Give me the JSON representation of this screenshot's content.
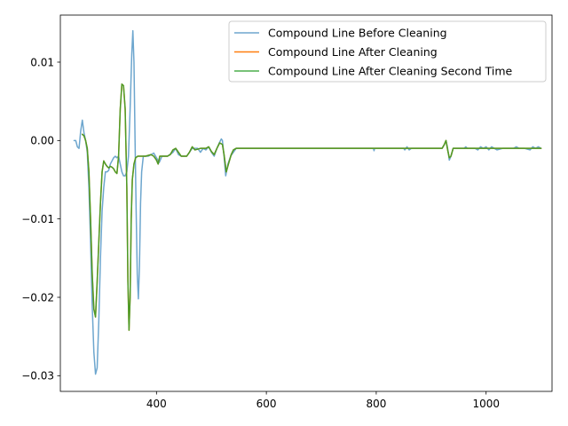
{
  "chart_data": {
    "type": "line",
    "title": "",
    "xlabel": "",
    "ylabel": "",
    "xlim": [
      225,
      1120
    ],
    "ylim": [
      -0.032,
      0.016
    ],
    "xticks": [
      400,
      600,
      800,
      1000
    ],
    "yticks": [
      0.01,
      0.0,
      -0.01,
      -0.02,
      -0.03
    ],
    "ytick_labels": [
      "0.01",
      "0.00",
      "−0.01",
      "−0.02",
      "−0.03"
    ],
    "xtick_labels": [
      "400",
      "600",
      "800",
      "1000"
    ],
    "grid": false,
    "legend_position": "top-right",
    "series": [
      {
        "name": "Compound Line Before Cleaning",
        "color": "#1f77b4",
        "opacity": 0.65,
        "points": [
          [
            250,
            0.0
          ],
          [
            253,
            0.0
          ],
          [
            256,
            -0.0008
          ],
          [
            259,
            -0.001
          ],
          [
            262,
            0.0012
          ],
          [
            265,
            0.0026
          ],
          [
            268,
            0.001
          ],
          [
            271,
            0.0
          ],
          [
            274,
            -0.0015
          ],
          [
            277,
            -0.006
          ],
          [
            280,
            -0.013
          ],
          [
            283,
            -0.021
          ],
          [
            286,
            -0.027
          ],
          [
            289,
            -0.0298
          ],
          [
            292,
            -0.029
          ],
          [
            295,
            -0.023
          ],
          [
            298,
            -0.015
          ],
          [
            301,
            -0.009
          ],
          [
            304,
            -0.006
          ],
          [
            307,
            -0.004
          ],
          [
            310,
            -0.004
          ],
          [
            313,
            -0.0038
          ],
          [
            316,
            -0.003
          ],
          [
            319,
            -0.0026
          ],
          [
            322,
            -0.0022
          ],
          [
            325,
            -0.002
          ],
          [
            328,
            -0.0022
          ],
          [
            331,
            -0.002
          ],
          [
            334,
            -0.003
          ],
          [
            337,
            -0.004
          ],
          [
            340,
            -0.0045
          ],
          [
            343,
            -0.0045
          ],
          [
            346,
            -0.004
          ],
          [
            349,
            -0.002
          ],
          [
            352,
            0.004
          ],
          [
            355,
            0.011
          ],
          [
            357,
            0.014
          ],
          [
            359,
            0.01
          ],
          [
            361,
            0.0
          ],
          [
            363,
            -0.009
          ],
          [
            365,
            -0.017
          ],
          [
            367,
            -0.0202
          ],
          [
            369,
            -0.016
          ],
          [
            371,
            -0.008
          ],
          [
            373,
            -0.004
          ],
          [
            376,
            -0.002
          ],
          [
            380,
            -0.002
          ],
          [
            385,
            -0.002
          ],
          [
            390,
            -0.0018
          ],
          [
            395,
            -0.0016
          ],
          [
            400,
            -0.0022
          ],
          [
            405,
            -0.0028
          ],
          [
            410,
            -0.002
          ],
          [
            420,
            -0.002
          ],
          [
            430,
            -0.0015
          ],
          [
            435,
            -0.001
          ],
          [
            440,
            -0.0018
          ],
          [
            445,
            -0.002
          ],
          [
            455,
            -0.002
          ],
          [
            460,
            -0.0015
          ],
          [
            465,
            -0.001
          ],
          [
            470,
            -0.001
          ],
          [
            475,
            -0.001
          ],
          [
            480,
            -0.0015
          ],
          [
            485,
            -0.001
          ],
          [
            490,
            -0.0012
          ],
          [
            495,
            -0.0008
          ],
          [
            500,
            -0.0015
          ],
          [
            505,
            -0.002
          ],
          [
            510,
            -0.001
          ],
          [
            515,
            -0.0002
          ],
          [
            518,
            0.0002
          ],
          [
            520,
            0.0
          ],
          [
            523,
            -0.002
          ],
          [
            526,
            -0.0045
          ],
          [
            530,
            -0.003
          ],
          [
            535,
            -0.002
          ],
          [
            540,
            -0.0015
          ],
          [
            545,
            -0.001
          ],
          [
            600,
            -0.001
          ],
          [
            700,
            -0.001
          ],
          [
            795,
            -0.001
          ],
          [
            796,
            -0.0013
          ],
          [
            797,
            -0.001
          ],
          [
            850,
            -0.001
          ],
          [
            852,
            -0.0012
          ],
          [
            856,
            -0.0008
          ],
          [
            860,
            -0.0012
          ],
          [
            864,
            -0.001
          ],
          [
            920,
            -0.001
          ],
          [
            924,
            -0.0005
          ],
          [
            927,
            0.0
          ],
          [
            930,
            -0.001
          ],
          [
            933,
            -0.0025
          ],
          [
            936,
            -0.002
          ],
          [
            940,
            -0.001
          ],
          [
            960,
            -0.001
          ],
          [
            963,
            -0.0008
          ],
          [
            966,
            -0.001
          ],
          [
            980,
            -0.001
          ],
          [
            985,
            -0.0012
          ],
          [
            990,
            -0.0008
          ],
          [
            995,
            -0.001
          ],
          [
            1000,
            -0.0008
          ],
          [
            1005,
            -0.0012
          ],
          [
            1010,
            -0.0008
          ],
          [
            1015,
            -0.001
          ],
          [
            1020,
            -0.0012
          ],
          [
            1030,
            -0.001
          ],
          [
            1050,
            -0.001
          ],
          [
            1055,
            -0.0008
          ],
          [
            1060,
            -0.001
          ],
          [
            1070,
            -0.001
          ],
          [
            1080,
            -0.0012
          ],
          [
            1085,
            -0.0008
          ],
          [
            1090,
            -0.001
          ],
          [
            1095,
            -0.0008
          ],
          [
            1100,
            -0.001
          ]
        ]
      },
      {
        "name": "Compound Line After Cleaning",
        "color": "#ff7f0e",
        "opacity": 1,
        "points": [
          [
            265,
            0.0008
          ],
          [
            268,
            0.0006
          ],
          [
            271,
            0.0
          ],
          [
            274,
            -0.001
          ],
          [
            277,
            -0.004
          ],
          [
            280,
            -0.01
          ],
          [
            283,
            -0.017
          ],
          [
            286,
            -0.0215
          ],
          [
            289,
            -0.0225
          ],
          [
            292,
            -0.018
          ],
          [
            295,
            -0.013
          ],
          [
            298,
            -0.008
          ],
          [
            301,
            -0.004
          ],
          [
            304,
            -0.0026
          ],
          [
            307,
            -0.003
          ],
          [
            310,
            -0.0033
          ],
          [
            313,
            -0.0035
          ],
          [
            316,
            -0.0033
          ],
          [
            319,
            -0.0034
          ],
          [
            322,
            -0.0036
          ],
          [
            325,
            -0.004
          ],
          [
            328,
            -0.0042
          ],
          [
            331,
            -0.002
          ],
          [
            334,
            0.004
          ],
          [
            337,
            0.0072
          ],
          [
            340,
            0.007
          ],
          [
            343,
            0.004
          ],
          [
            346,
            -0.006
          ],
          [
            348,
            -0.018
          ],
          [
            350,
            -0.0242
          ],
          [
            352,
            -0.02
          ],
          [
            354,
            -0.01
          ],
          [
            356,
            -0.005
          ],
          [
            359,
            -0.003
          ],
          [
            362,
            -0.0022
          ],
          [
            366,
            -0.002
          ],
          [
            370,
            -0.002
          ],
          [
            380,
            -0.002
          ],
          [
            390,
            -0.0018
          ],
          [
            395,
            -0.002
          ],
          [
            400,
            -0.0025
          ],
          [
            403,
            -0.003
          ],
          [
            406,
            -0.002
          ],
          [
            420,
            -0.002
          ],
          [
            425,
            -0.0018
          ],
          [
            430,
            -0.0012
          ],
          [
            435,
            -0.001
          ],
          [
            440,
            -0.0015
          ],
          [
            445,
            -0.002
          ],
          [
            455,
            -0.002
          ],
          [
            460,
            -0.0015
          ],
          [
            465,
            -0.0008
          ],
          [
            470,
            -0.0012
          ],
          [
            480,
            -0.001
          ],
          [
            490,
            -0.001
          ],
          [
            495,
            -0.0008
          ],
          [
            500,
            -0.0014
          ],
          [
            505,
            -0.0018
          ],
          [
            510,
            -0.001
          ],
          [
            515,
            -0.0003
          ],
          [
            520,
            -0.0005
          ],
          [
            523,
            -0.0018
          ],
          [
            527,
            -0.004
          ],
          [
            531,
            -0.003
          ],
          [
            536,
            -0.0018
          ],
          [
            540,
            -0.0012
          ],
          [
            545,
            -0.001
          ],
          [
            600,
            -0.001
          ],
          [
            700,
            -0.001
          ],
          [
            800,
            -0.001
          ],
          [
            900,
            -0.001
          ],
          [
            920,
            -0.001
          ],
          [
            924,
            -0.0005
          ],
          [
            927,
            0.0
          ],
          [
            930,
            -0.0012
          ],
          [
            933,
            -0.0022
          ],
          [
            936,
            -0.002
          ],
          [
            940,
            -0.001
          ],
          [
            1000,
            -0.001
          ],
          [
            1100,
            -0.001
          ]
        ]
      },
      {
        "name": "Compound Line After Cleaning Second Time",
        "color": "#2ca02c",
        "opacity": 0.85,
        "points": [
          [
            265,
            0.0008
          ],
          [
            268,
            0.0006
          ],
          [
            271,
            0.0
          ],
          [
            274,
            -0.001
          ],
          [
            277,
            -0.004
          ],
          [
            280,
            -0.01
          ],
          [
            283,
            -0.017
          ],
          [
            286,
            -0.0215
          ],
          [
            289,
            -0.0225
          ],
          [
            292,
            -0.018
          ],
          [
            295,
            -0.013
          ],
          [
            298,
            -0.008
          ],
          [
            301,
            -0.004
          ],
          [
            304,
            -0.0026
          ],
          [
            307,
            -0.003
          ],
          [
            310,
            -0.0033
          ],
          [
            313,
            -0.0035
          ],
          [
            316,
            -0.0033
          ],
          [
            319,
            -0.0034
          ],
          [
            322,
            -0.0036
          ],
          [
            325,
            -0.004
          ],
          [
            328,
            -0.0042
          ],
          [
            331,
            -0.002
          ],
          [
            334,
            0.004
          ],
          [
            337,
            0.0072
          ],
          [
            340,
            0.007
          ],
          [
            343,
            0.004
          ],
          [
            346,
            -0.006
          ],
          [
            348,
            -0.018
          ],
          [
            350,
            -0.0242
          ],
          [
            352,
            -0.02
          ],
          [
            354,
            -0.01
          ],
          [
            356,
            -0.005
          ],
          [
            359,
            -0.003
          ],
          [
            362,
            -0.0022
          ],
          [
            366,
            -0.002
          ],
          [
            370,
            -0.002
          ],
          [
            380,
            -0.002
          ],
          [
            390,
            -0.0018
          ],
          [
            395,
            -0.002
          ],
          [
            400,
            -0.0025
          ],
          [
            403,
            -0.003
          ],
          [
            406,
            -0.002
          ],
          [
            420,
            -0.002
          ],
          [
            425,
            -0.0018
          ],
          [
            430,
            -0.0012
          ],
          [
            435,
            -0.001
          ],
          [
            440,
            -0.0015
          ],
          [
            445,
            -0.002
          ],
          [
            455,
            -0.002
          ],
          [
            460,
            -0.0015
          ],
          [
            465,
            -0.0008
          ],
          [
            470,
            -0.0012
          ],
          [
            480,
            -0.001
          ],
          [
            490,
            -0.001
          ],
          [
            495,
            -0.0008
          ],
          [
            500,
            -0.0014
          ],
          [
            505,
            -0.0018
          ],
          [
            510,
            -0.001
          ],
          [
            515,
            -0.0003
          ],
          [
            520,
            -0.0005
          ],
          [
            523,
            -0.0018
          ],
          [
            527,
            -0.004
          ],
          [
            531,
            -0.003
          ],
          [
            536,
            -0.0018
          ],
          [
            540,
            -0.0012
          ],
          [
            545,
            -0.001
          ],
          [
            600,
            -0.001
          ],
          [
            700,
            -0.001
          ],
          [
            800,
            -0.001
          ],
          [
            900,
            -0.001
          ],
          [
            920,
            -0.001
          ],
          [
            924,
            -0.0005
          ],
          [
            927,
            0.0
          ],
          [
            930,
            -0.0012
          ],
          [
            933,
            -0.0022
          ],
          [
            936,
            -0.002
          ],
          [
            940,
            -0.001
          ],
          [
            1000,
            -0.001
          ],
          [
            1100,
            -0.001
          ]
        ]
      }
    ]
  }
}
